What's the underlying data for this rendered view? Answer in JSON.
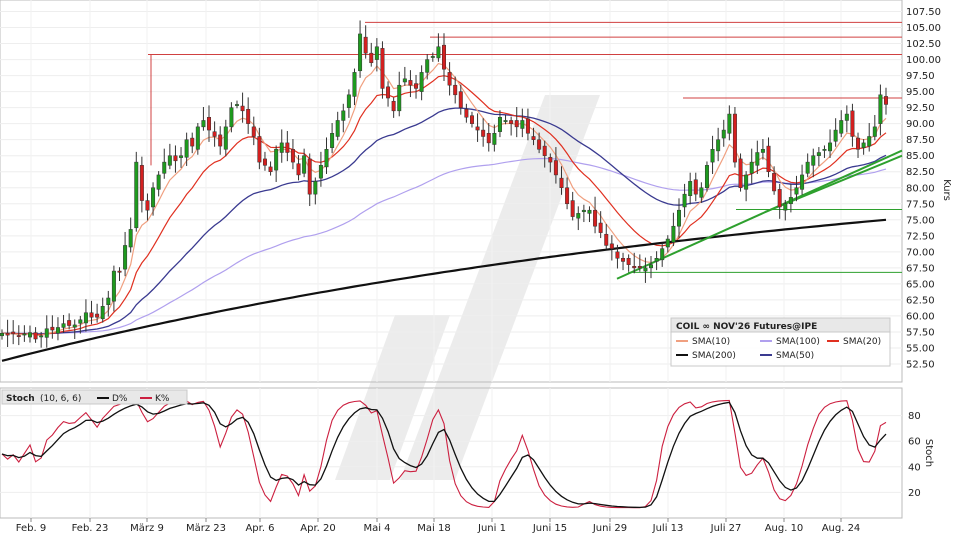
{
  "chart_data": [
    {
      "type": "candlestick",
      "title": "COIL ∞ NOV'26 Futures@IPE",
      "ylabel": "Kurs",
      "ylim": [
        52.5,
        107.5
      ],
      "y_ticks": [
        52.5,
        55.0,
        57.5,
        60.0,
        62.5,
        65.0,
        67.5,
        70.0,
        72.5,
        75.0,
        77.5,
        80.0,
        82.5,
        85.0,
        87.5,
        90.0,
        92.5,
        95.0,
        97.5,
        100.0,
        102.5,
        105.0,
        107.5
      ],
      "x_labels": [
        "Feb. 9",
        "Feb. 23",
        "März 9",
        "März 23",
        "Apr. 6",
        "Apr. 20",
        "Mai 4",
        "Mai 18",
        "Juni 1",
        "Juni 15",
        "Juni 29",
        "Juli 13",
        "Juli 27",
        "Aug. 10",
        "Aug. 24"
      ],
      "legend": [
        {
          "name": "SMA(10)",
          "color": "#f0a080"
        },
        {
          "name": "SMA(100)",
          "color": "#b0a0ee"
        },
        {
          "name": "SMA(20)",
          "color": "#e03020"
        },
        {
          "name": "SMA(200)",
          "color": "#111111"
        },
        {
          "name": "SMA(50)",
          "color": "#3a3a90"
        }
      ],
      "close": [
        57.3,
        57.0,
        57.2,
        56.8,
        57.2,
        57.4,
        56.4,
        56.9,
        58.0,
        57.8,
        58.2,
        58.8,
        58.5,
        58.6,
        59.4,
        60.5,
        59.8,
        59.8,
        61.5,
        62.8,
        67.0,
        66.8,
        71.0,
        73.5,
        84.0,
        78.0,
        76.5,
        80.0,
        82.0,
        84.0,
        85.0,
        84.2,
        85.0,
        87.5,
        86.5,
        89.5,
        90.5,
        89.0,
        88.0,
        86.5,
        89.5,
        92.5,
        93.0,
        92.0,
        90.0,
        88.0,
        84.0,
        83.5,
        82.5,
        86.0,
        87.0,
        85.5,
        84.0,
        82.0,
        85.0,
        79.0,
        81.0,
        83.5,
        86.0,
        88.5,
        90.5,
        92.0,
        94.5,
        98.0,
        104.0,
        101.0,
        99.5,
        102.0,
        95.5,
        94.0,
        92.0,
        96.0,
        97.0,
        96.0,
        95.5,
        98.0,
        100.0,
        100.5,
        102.0,
        98.5,
        96.0,
        94.5,
        92.5,
        91.0,
        90.0,
        89.0,
        88.0,
        87.0,
        88.5,
        91.0,
        90.5,
        90.0,
        89.5,
        90.5,
        88.5,
        87.5,
        86.0,
        85.0,
        84.0,
        82.0,
        80.0,
        77.5,
        75.5,
        76.0,
        76.5,
        76.5,
        74.0,
        73.0,
        71.0,
        70.5,
        69.0,
        68.5,
        68.0,
        67.5,
        67.5,
        67.5,
        68.0,
        69.0,
        70.5,
        72.0,
        74.0,
        76.5,
        79.0,
        81.0,
        79.0,
        80.0,
        83.5,
        86.0,
        87.5,
        89.0,
        91.5,
        84.0,
        80.0,
        82.0,
        84.0,
        85.5,
        86.0,
        82.5,
        79.5,
        77.0,
        77.5,
        78.5,
        80.0,
        82.0,
        84.0,
        85.0,
        85.5,
        86.0,
        87.0,
        89.0,
        90.5,
        91.5,
        88.0,
        86.0,
        87.0,
        88.0,
        89.5,
        94.5,
        93.0
      ]
    },
    {
      "type": "line",
      "title": "Stoch",
      "params": "(10, 6, 6)",
      "ylabel": "Stoch",
      "ylim": [
        0,
        100
      ],
      "y_ticks": [
        20,
        40,
        60,
        80
      ],
      "legend": [
        {
          "name": "D%",
          "color": "#111111"
        },
        {
          "name": "K%",
          "color": "#cc2040"
        }
      ]
    }
  ]
}
